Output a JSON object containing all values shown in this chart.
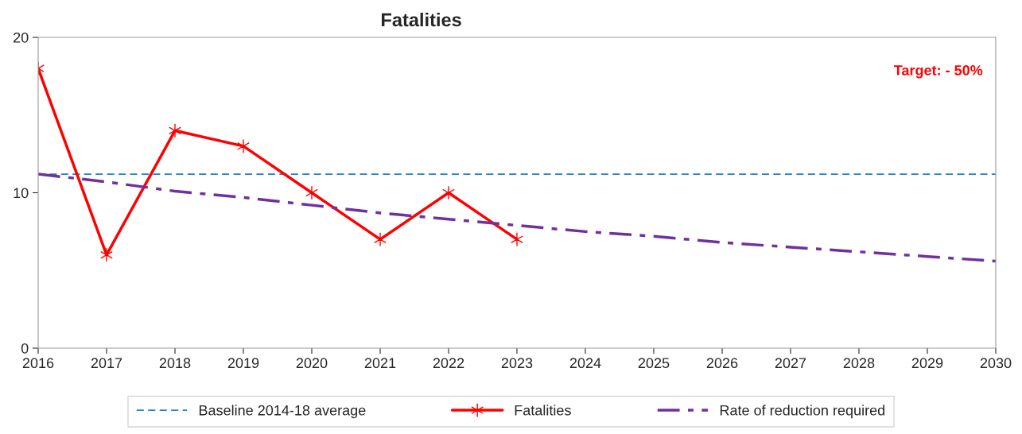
{
  "chart_data": {
    "type": "line",
    "title": "Fatalities",
    "xlim": [
      2016,
      2030
    ],
    "xticks": [
      2016,
      2017,
      2018,
      2019,
      2020,
      2021,
      2022,
      2023,
      2024,
      2025,
      2026,
      2027,
      2028,
      2029,
      2030
    ],
    "ylim": [
      0,
      20
    ],
    "yticks": [
      0,
      10,
      20
    ],
    "grid": false,
    "legend": "bottom",
    "series": [
      {
        "name": "Baseline 2014-18 average",
        "color": "#1f7fd0",
        "line_style": "dashed",
        "marker": "none",
        "x": [
          2016,
          2030
        ],
        "values": [
          11.2,
          11.2
        ]
      },
      {
        "name": "Fatalities",
        "color": "#ff0000",
        "line_style": "solid",
        "marker": "cross",
        "x": [
          2016,
          2017,
          2018,
          2019,
          2020,
          2021,
          2022,
          2023
        ],
        "values": [
          18,
          6,
          14,
          13,
          10,
          7,
          10,
          7
        ]
      },
      {
        "name": "Rate of reduction required",
        "color": "#7030a0",
        "line_style": "dashed",
        "marker": "none",
        "x": [
          2016,
          2017,
          2018,
          2019,
          2020,
          2021,
          2022,
          2023,
          2024,
          2025,
          2026,
          2027,
          2028,
          2029,
          2030
        ],
        "values": [
          11.2,
          10.7,
          10.1,
          9.7,
          9.2,
          8.7,
          8.3,
          7.9,
          7.5,
          7.2,
          6.8,
          6.5,
          6.2,
          5.9,
          5.6
        ]
      }
    ],
    "annotations": [
      "Target: - 50%"
    ]
  }
}
